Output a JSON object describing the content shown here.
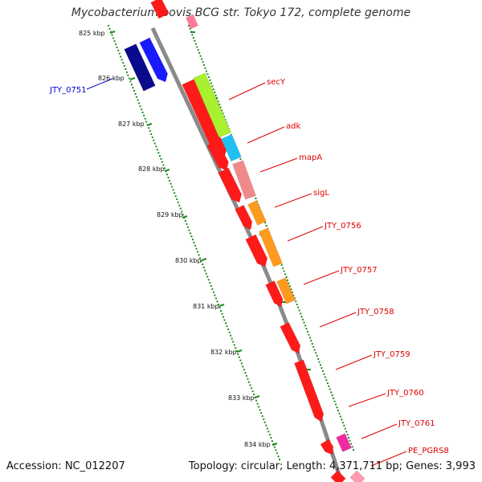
{
  "title": "Mycobacterium bovis BCG str. Tokyo 172, complete genome",
  "footer": {
    "accession": "Accession: NC_012207",
    "summary": "Topology: circular; Length: 4,371,711 bp; Genes: 3,993"
  },
  "colors": {
    "backbone": "#8a8a8a",
    "ticks": "#1f8a1f",
    "gene_red": "#ff1a1a",
    "gene_dark_blue": "#0a0a8c",
    "gene_blue": "#1a1aff",
    "label_red": "#e00000",
    "label_blue": "#0000cc"
  },
  "scale_labels": [
    "825 kbp",
    "826 kbp",
    "827 kbp",
    "828 kbp",
    "829 kbp",
    "830 kbp",
    "831 kbp",
    "832 kbp",
    "833 kbp",
    "834 kbp"
  ],
  "gene_labels": [
    {
      "text": "JTY_0751",
      "color": "#0000cc"
    },
    {
      "text": "secY",
      "color": "#e00000"
    },
    {
      "text": "adk",
      "color": "#e00000"
    },
    {
      "text": "mapA",
      "color": "#e00000"
    },
    {
      "text": "sigL",
      "color": "#e00000"
    },
    {
      "text": "JTY_0756",
      "color": "#e00000"
    },
    {
      "text": "JTY_0757",
      "color": "#e00000"
    },
    {
      "text": "JTY_0758",
      "color": "#e00000"
    },
    {
      "text": "JTY_0759",
      "color": "#e00000"
    },
    {
      "text": "JTY_0760",
      "color": "#e00000"
    },
    {
      "text": "JTY_0761",
      "color": "#e00000"
    },
    {
      "text": "PE_PGRS8",
      "color": "#e00000"
    }
  ]
}
